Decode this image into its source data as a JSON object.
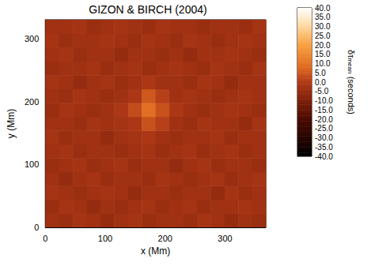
{
  "chart_data": {
    "type": "heatmap",
    "title": "GIZON & BIRCH (2004)",
    "x_label": "x (Mm)",
    "y_label": "y (Mm)",
    "x": [
      11.5,
      34.5,
      57.5,
      80.5,
      103.5,
      126.5,
      149.5,
      172.5,
      195.5,
      218.5,
      241.5,
      264.5,
      287.5,
      310.5,
      333.5,
      356.5
    ],
    "y": [
      11,
      33,
      55,
      77,
      99,
      121,
      143,
      165,
      187,
      209,
      231,
      253,
      275,
      297,
      319
    ],
    "values": [
      [
        -3,
        -4,
        -2,
        -3,
        -5,
        -3,
        -2,
        -4,
        -3,
        -3,
        -4,
        -2,
        -3,
        -5,
        -3,
        -4
      ],
      [
        -4,
        -2,
        -3,
        -5,
        -3,
        -4,
        -3,
        -2,
        -4,
        -3,
        -2,
        -4,
        -3,
        -3,
        -2,
        -3
      ],
      [
        -2,
        -3,
        -4,
        -3,
        -2,
        -3,
        -5,
        -3,
        -3,
        -4,
        -3,
        -3,
        -5,
        -2,
        -4,
        -3
      ],
      [
        -3,
        -5,
        -3,
        -2,
        -4,
        -3,
        -3,
        -4,
        -2,
        -3,
        -4,
        -3,
        -2,
        -4,
        -3,
        -2
      ],
      [
        -4,
        -3,
        -2,
        -4,
        -3,
        -2,
        -4,
        -3,
        -3,
        -5,
        -3,
        -2,
        -4,
        -3,
        -3,
        -4
      ],
      [
        -3,
        -2,
        -4,
        -3,
        -3,
        -4,
        -3,
        -2,
        -4,
        -3,
        -2,
        -4,
        -3,
        -2,
        -4,
        -3
      ],
      [
        -2,
        -4,
        -3,
        -3,
        -5,
        -3,
        -2,
        -1,
        -3,
        -4,
        -3,
        -3,
        -2,
        -4,
        -3,
        -3
      ],
      [
        -3,
        -3,
        -4,
        -2,
        -3,
        -2,
        -1,
        4,
        1,
        -3,
        -4,
        -2,
        -3,
        -3,
        -5,
        -2
      ],
      [
        -4,
        -2,
        -3,
        -4,
        -3,
        -1,
        3,
        9,
        4,
        -1,
        -3,
        -4,
        -3,
        -2,
        -3,
        -4
      ],
      [
        -3,
        -4,
        -2,
        -3,
        -4,
        -3,
        -1,
        5,
        1,
        -3,
        -2,
        -3,
        -4,
        -3,
        -2,
        -3
      ],
      [
        -2,
        -3,
        -5,
        -3,
        -2,
        -4,
        -3,
        -1,
        -3,
        -3,
        -4,
        -2,
        -3,
        -5,
        -3,
        -3
      ],
      [
        -4,
        -3,
        -3,
        -2,
        -4,
        -3,
        -2,
        -4,
        -3,
        -2,
        -3,
        -4,
        -2,
        -3,
        -4,
        -2
      ],
      [
        -3,
        -2,
        -4,
        -3,
        -3,
        -5,
        -3,
        -3,
        -4,
        -3,
        -5,
        -3,
        -3,
        -2,
        -3,
        -4
      ],
      [
        -2,
        -4,
        -3,
        -3,
        -2,
        -3,
        -4,
        -2,
        -3,
        -4,
        -2,
        -3,
        -4,
        -3,
        -2,
        -3
      ],
      [
        -3,
        -3,
        -2,
        -4,
        -3,
        -2,
        -3,
        -4,
        -2,
        -3,
        -3,
        -4,
        -3,
        -3,
        -4,
        -2
      ]
    ],
    "xlim": [
      0,
      368
    ],
    "ylim": [
      0,
      330
    ],
    "xticks": [
      0,
      100,
      200,
      300
    ],
    "yticks": [
      0,
      100,
      200,
      300
    ],
    "grid": false,
    "colorbar_label": {
      "symbol": "δτ",
      "subscript": "mean",
      "unit": "(seconds)"
    },
    "colorbar_lim": [
      -40,
      40
    ],
    "colorbar_ticks": [
      {
        "value": -40,
        "label": "-40.0"
      },
      {
        "value": -35,
        "label": "-35.0"
      },
      {
        "value": -30,
        "label": "-30.0"
      },
      {
        "value": -25,
        "label": "-25.0"
      },
      {
        "value": -20,
        "label": "-20.0"
      },
      {
        "value": -15,
        "label": "-15.0"
      },
      {
        "value": -10,
        "label": "-10.0"
      },
      {
        "value": -5,
        "label": "-5.0"
      },
      {
        "value": 0,
        "label": "0.0"
      },
      {
        "value": 5,
        "label": "5.0"
      },
      {
        "value": 10,
        "label": "10.0"
      },
      {
        "value": 15,
        "label": "15.0"
      },
      {
        "value": 20,
        "label": "20.0"
      },
      {
        "value": 25,
        "label": "25.0"
      },
      {
        "value": 30,
        "label": "30.0"
      },
      {
        "value": 35,
        "label": "35.0"
      },
      {
        "value": 40,
        "label": "40.0"
      }
    ]
  }
}
